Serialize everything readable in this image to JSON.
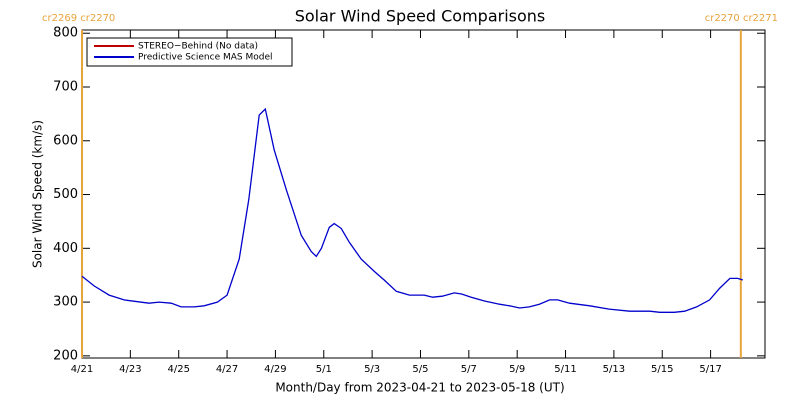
{
  "chart_data": {
    "type": "line",
    "title": "Solar Wind Speed Comparisons",
    "x_label": "Month/Day from 2023-04-21 to 2023-05-18 (UT)",
    "y_label": "Solar Wind Speed (km/s)",
    "x": [
      0,
      0.5,
      1.12,
      1.74,
      2.77,
      3.19,
      3.69,
      4.1,
      4.64,
      5.05,
      5.6,
      6.0,
      6.5,
      6.9,
      7.33,
      7.58,
      7.95,
      8.45,
      9.07,
      9.48,
      9.69,
      9.9,
      10.23,
      10.43,
      10.72,
      11.06,
      11.55,
      12.09,
      12.5,
      13.0,
      13.54,
      14.16,
      14.5,
      14.9,
      15.4,
      15.7,
      16.1,
      16.65,
      17.27,
      17.68,
      18.1,
      18.5,
      18.92,
      19.34,
      19.67,
      20.17,
      21.0,
      21.8,
      22.65,
      23.48,
      23.9,
      24.5,
      24.93,
      25.42,
      25.96,
      26.38,
      26.8,
      27.12,
      27.33
    ],
    "series": [
      {
        "name": "STEREO−Behind (No data)",
        "color": "#c00000",
        "values": [
          null,
          null,
          null,
          null,
          null,
          null,
          null,
          null,
          null,
          null,
          null,
          null,
          null,
          null,
          null,
          null,
          null,
          null,
          null,
          null,
          null,
          null,
          null,
          null,
          null,
          null,
          null,
          null,
          null,
          null,
          null,
          null,
          null,
          null,
          null,
          null,
          null,
          null,
          null,
          null,
          null,
          null,
          null,
          null,
          null,
          null,
          null,
          null,
          null,
          null,
          null,
          null,
          null,
          null,
          null,
          null,
          null,
          null,
          null
        ]
      },
      {
        "name": "Predictive Science MAS Model",
        "color": "#0000cc",
        "values": [
          348,
          330,
          313,
          304,
          298,
          300,
          298,
          291,
          291,
          293,
          300,
          313,
          380,
          491,
          648,
          659,
          583,
          509,
          424,
          394,
          385,
          400,
          439,
          446,
          437,
          411,
          380,
          357,
          341,
          320,
          313,
          313,
          309,
          311,
          317,
          315,
          309,
          302,
          296,
          293,
          289,
          291,
          296,
          304,
          304,
          298,
          293,
          287,
          283,
          283,
          281,
          281,
          283,
          291,
          304,
          326,
          344,
          344,
          341
        ]
      }
    ],
    "xlim": [
      0,
      28.25
    ],
    "ylim": [
      196,
      806
    ],
    "xticks": [
      {
        "value": 0,
        "label": "4/21"
      },
      {
        "value": 2,
        "label": "4/23"
      },
      {
        "value": 4,
        "label": "4/25"
      },
      {
        "value": 6,
        "label": "4/27"
      },
      {
        "value": 8,
        "label": "4/29"
      },
      {
        "value": 10,
        "label": "5/1"
      },
      {
        "value": 12,
        "label": "5/3"
      },
      {
        "value": 14,
        "label": "5/5"
      },
      {
        "value": 16,
        "label": "5/7"
      },
      {
        "value": 18,
        "label": "5/9"
      },
      {
        "value": 20,
        "label": "5/11"
      },
      {
        "value": 22,
        "label": "5/13"
      },
      {
        "value": 24,
        "label": "5/15"
      },
      {
        "value": 26,
        "label": "5/17"
      }
    ],
    "yticks": [
      200,
      300,
      400,
      500,
      600,
      700,
      800
    ],
    "markers": [
      {
        "x": 0,
        "label": "cr2269 cr2270",
        "color": "#e8a33c"
      },
      {
        "x": 27.25,
        "label": "cr2270 cr2271",
        "color": "#e8a33c"
      }
    ],
    "legend": "upper left"
  }
}
